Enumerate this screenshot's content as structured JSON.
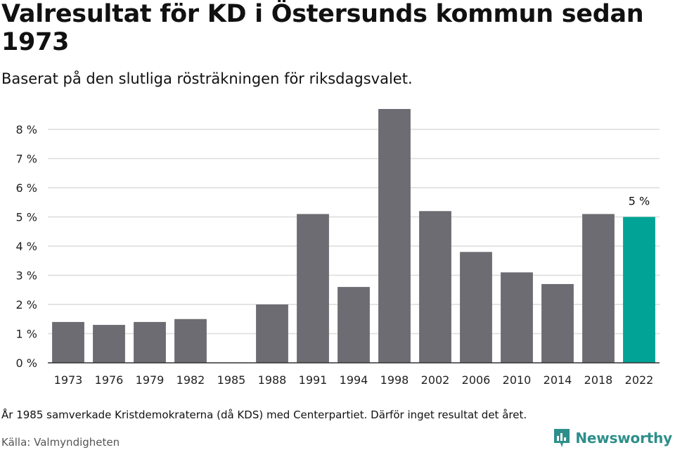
{
  "title": "Valresultat för KD i Östersunds kommun sedan 1973",
  "subtitle": "Baserat på den slutliga rösträkningen för riksdagsvalet.",
  "note": "År 1985 samverkade Kristdemokraterna (då KDS) med Centerpartiet. Därför inget resultat det året.",
  "source": "Källa: Valmyndigheten",
  "brand": {
    "name": "Newsworthy",
    "color": "#2e8f8a",
    "icon": "newsworthy-logo-icon"
  },
  "colors": {
    "bar": "#6d6c72",
    "highlight": "#00a396",
    "grid": "#dcdcdc",
    "axis": "#333333"
  },
  "chart_data": {
    "type": "bar",
    "title": "Valresultat för KD i Östersunds kommun sedan 1973",
    "subtitle": "Baserat på den slutliga rösträkningen för riksdagsvalet.",
    "xlabel": "",
    "ylabel": "",
    "categories": [
      "1973",
      "1976",
      "1979",
      "1982",
      "1985",
      "1988",
      "1991",
      "1994",
      "1998",
      "2002",
      "2006",
      "2010",
      "2014",
      "2018",
      "2022"
    ],
    "values": [
      1.4,
      1.3,
      1.4,
      1.5,
      null,
      2.0,
      5.1,
      2.6,
      8.7,
      5.2,
      3.8,
      3.1,
      2.7,
      5.1,
      5.0
    ],
    "ylim": [
      0,
      8.7
    ],
    "yticks": [
      0,
      1,
      2,
      3,
      4,
      5,
      6,
      7,
      8
    ],
    "ytick_suffix": " %",
    "highlight_category": "2022",
    "data_labels": [
      {
        "category": "2022",
        "text": "5 %"
      }
    ],
    "grid": true,
    "legend": "none"
  }
}
